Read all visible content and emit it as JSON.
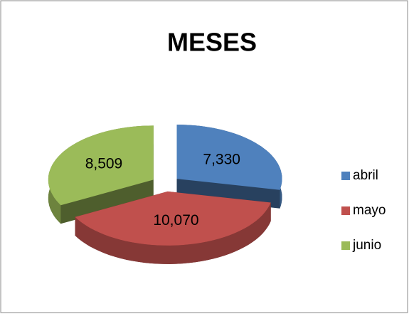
{
  "chart_data": {
    "type": "pie",
    "title": "MESES",
    "categories": [
      "abril",
      "mayo",
      "junio"
    ],
    "values": [
      7330,
      10070,
      8509
    ],
    "value_labels": [
      "7,330",
      "10,070",
      "8,509"
    ],
    "colors": [
      "#4f81bd",
      "#c0504d",
      "#9bbb59"
    ],
    "legend": "right"
  }
}
